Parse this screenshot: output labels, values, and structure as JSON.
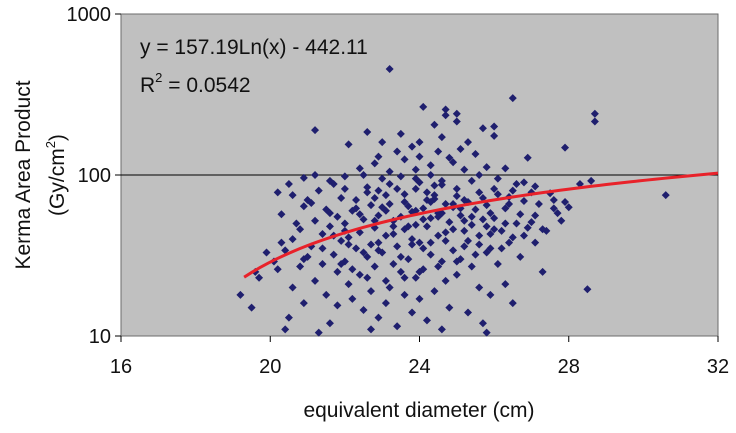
{
  "chart_data": {
    "type": "scatter",
    "xlabel": "equivalent diameter (cm)",
    "ylabel_line1": "Kerma Area Product",
    "ylabel_line2_main": "(Gy/cm",
    "ylabel_line2_sup": "2",
    "ylabel_line2_end": ")",
    "xlim": [
      16,
      32
    ],
    "ylim": [
      10,
      1000
    ],
    "yscale": "log",
    "x_ticks": [
      16,
      20,
      24,
      28,
      32
    ],
    "x_tick_labels": [
      "16",
      "20",
      "24",
      "28",
      "32"
    ],
    "y_ticks": [
      10,
      100,
      1000
    ],
    "y_tick_labels": [
      "10",
      "100",
      "1000"
    ],
    "grid": "horizontal major gridline at 100",
    "plot_background": "#c0c0c0",
    "marker_color": "#1f1f6e",
    "trend_color": "#e8222a",
    "equation": "y = 157.19Ln(x) - 442.11",
    "r2_prefix": "R",
    "r2_sup": "2",
    "r2_suffix": " = 0.0542",
    "trendline": {
      "a": 157.19,
      "b": -442.11,
      "x_range": [
        19.3,
        32
      ]
    },
    "points": [
      [
        23.2,
        455
      ],
      [
        24.7,
        255
      ],
      [
        25.0,
        240
      ],
      [
        24.1,
        265
      ],
      [
        26.5,
        300
      ],
      [
        28.7,
        240
      ],
      [
        28.7,
        215
      ],
      [
        21.2,
        190
      ],
      [
        22.6,
        185
      ],
      [
        23.5,
        180
      ],
      [
        26.0,
        200
      ],
      [
        26.0,
        175
      ],
      [
        25.3,
        160
      ],
      [
        27.9,
        148
      ],
      [
        24.7,
        235
      ],
      [
        25.0,
        215
      ],
      [
        24.4,
        205
      ],
      [
        25.7,
        195
      ],
      [
        23.0,
        160
      ],
      [
        22.1,
        155
      ],
      [
        23.8,
        150
      ],
      [
        24.5,
        140
      ],
      [
        25.1,
        145
      ],
      [
        24.0,
        130
      ],
      [
        23.6,
        125
      ],
      [
        24.9,
        120
      ],
      [
        22.8,
        118
      ],
      [
        22.4,
        110
      ],
      [
        23.2,
        105
      ],
      [
        25.8,
        112
      ],
      [
        26.3,
        110
      ],
      [
        24.3,
        100
      ],
      [
        22.0,
        98
      ],
      [
        23.9,
        95
      ],
      [
        25.4,
        92
      ],
      [
        26.8,
        90
      ],
      [
        21.7,
        88
      ],
      [
        24.6,
        87
      ],
      [
        27.1,
        85
      ],
      [
        22.6,
        84
      ],
      [
        23.4,
        82
      ],
      [
        26.0,
        82
      ],
      [
        21.3,
        80
      ],
      [
        22.9,
        80
      ],
      [
        24.2,
        78
      ],
      [
        25.6,
        78
      ],
      [
        27.5,
        77
      ],
      [
        20.6,
        75
      ],
      [
        23.1,
        75
      ],
      [
        25.0,
        74
      ],
      [
        26.4,
        73
      ],
      [
        21.9,
        72
      ],
      [
        24.4,
        71
      ],
      [
        22.3,
        70
      ],
      [
        25.2,
        70
      ],
      [
        26.8,
        69
      ],
      [
        23.6,
        68
      ],
      [
        21.1,
        67
      ],
      [
        24.9,
        66
      ],
      [
        27.2,
        66
      ],
      [
        22.7,
        65
      ],
      [
        25.8,
        65
      ],
      [
        20.9,
        64
      ],
      [
        23.0,
        63
      ],
      [
        24.1,
        62
      ],
      [
        26.3,
        62
      ],
      [
        21.5,
        61
      ],
      [
        25.5,
        61
      ],
      [
        22.2,
        60
      ],
      [
        23.8,
        59
      ],
      [
        27.7,
        58
      ],
      [
        24.6,
        58
      ],
      [
        20.3,
        57
      ],
      [
        26.7,
        57
      ],
      [
        22.9,
        56
      ],
      [
        25.1,
        56
      ],
      [
        21.8,
        55
      ],
      [
        23.5,
        55
      ],
      [
        24.3,
        54
      ],
      [
        26.0,
        54
      ],
      [
        22.5,
        53
      ],
      [
        25.7,
        53
      ],
      [
        21.2,
        52
      ],
      [
        23.3,
        52
      ],
      [
        24.8,
        51
      ],
      [
        27.0,
        51
      ],
      [
        22.0,
        50
      ],
      [
        26.3,
        50
      ],
      [
        23.9,
        49
      ],
      [
        25.4,
        49
      ],
      [
        21.6,
        48
      ],
      [
        24.2,
        48
      ],
      [
        22.8,
        47
      ],
      [
        26.9,
        47
      ],
      [
        20.8,
        46
      ],
      [
        23.6,
        46
      ],
      [
        25.2,
        45
      ],
      [
        27.4,
        45
      ],
      [
        22.4,
        44
      ],
      [
        24.7,
        44
      ],
      [
        21.4,
        43
      ],
      [
        25.9,
        43
      ],
      [
        23.1,
        42
      ],
      [
        24.5,
        42
      ],
      [
        22.1,
        41
      ],
      [
        26.5,
        41
      ],
      [
        20.6,
        40
      ],
      [
        23.8,
        40
      ],
      [
        25.3,
        39
      ],
      [
        21.9,
        39
      ],
      [
        24.0,
        38
      ],
      [
        27.1,
        38
      ],
      [
        22.7,
        37
      ],
      [
        25.6,
        37
      ],
      [
        21.1,
        36
      ],
      [
        23.4,
        36
      ],
      [
        26.2,
        35
      ],
      [
        22.3,
        35
      ],
      [
        24.9,
        34
      ],
      [
        20.4,
        34
      ],
      [
        23.0,
        33
      ],
      [
        25.8,
        33
      ],
      [
        21.7,
        32
      ],
      [
        24.3,
        32
      ],
      [
        22.6,
        31
      ],
      [
        26.7,
        31
      ],
      [
        23.7,
        30
      ],
      [
        20.9,
        30
      ],
      [
        25.1,
        30
      ],
      [
        22.0,
        29
      ],
      [
        24.6,
        29
      ],
      [
        21.4,
        28
      ],
      [
        23.3,
        28
      ],
      [
        26.1,
        28
      ],
      [
        22.8,
        27
      ],
      [
        25.4,
        27
      ],
      [
        20.2,
        26
      ],
      [
        24.1,
        26
      ],
      [
        21.8,
        25
      ],
      [
        23.5,
        25
      ],
      [
        27.3,
        25
      ],
      [
        22.4,
        24
      ],
      [
        25.0,
        24
      ],
      [
        19.7,
        23
      ],
      [
        23.9,
        23
      ],
      [
        21.2,
        22
      ],
      [
        24.7,
        22
      ],
      [
        22.1,
        21
      ],
      [
        26.3,
        21
      ],
      [
        20.6,
        20
      ],
      [
        23.2,
        20
      ],
      [
        25.6,
        20
      ],
      [
        28.5,
        19.5
      ],
      [
        22.7,
        19
      ],
      [
        24.4,
        19
      ],
      [
        21.5,
        18
      ],
      [
        19.2,
        18
      ],
      [
        23.6,
        18
      ],
      [
        25.9,
        18
      ],
      [
        22.2,
        17
      ],
      [
        24.0,
        17
      ],
      [
        20.9,
        16
      ],
      [
        23.1,
        16
      ],
      [
        26.5,
        16
      ],
      [
        21.8,
        15.5
      ],
      [
        24.8,
        15
      ],
      [
        19.5,
        15
      ],
      [
        22.5,
        14.5
      ],
      [
        23.8,
        14
      ],
      [
        25.3,
        14
      ],
      [
        20.5,
        13
      ],
      [
        22.9,
        13
      ],
      [
        24.2,
        12.5
      ],
      [
        21.6,
        12
      ],
      [
        25.7,
        12
      ],
      [
        23.4,
        11.5
      ],
      [
        20.4,
        11
      ],
      [
        22.7,
        11
      ],
      [
        24.6,
        11
      ],
      [
        21.3,
        10.5
      ],
      [
        25.8,
        10.5
      ],
      [
        19.6,
        25
      ],
      [
        20.1,
        29
      ],
      [
        19.9,
        33
      ],
      [
        20.8,
        27
      ],
      [
        21.0,
        31
      ],
      [
        20.3,
        38
      ],
      [
        21.4,
        35
      ],
      [
        22.0,
        45
      ],
      [
        21.6,
        58
      ],
      [
        21.0,
        70
      ],
      [
        20.7,
        50
      ],
      [
        22.3,
        62
      ],
      [
        22.8,
        72
      ],
      [
        23.2,
        88
      ],
      [
        23.5,
        98
      ],
      [
        23.9,
        108
      ],
      [
        24.3,
        115
      ],
      [
        24.8,
        128
      ],
      [
        25.2,
        108
      ],
      [
        25.6,
        100
      ],
      [
        26.1,
        95
      ],
      [
        26.6,
        88
      ],
      [
        27.0,
        78
      ],
      [
        27.6,
        70
      ],
      [
        28.0,
        63
      ],
      [
        27.8,
        52
      ],
      [
        27.3,
        46
      ],
      [
        26.8,
        42
      ],
      [
        26.4,
        38
      ],
      [
        25.9,
        35
      ],
      [
        25.5,
        32
      ],
      [
        25.0,
        29
      ],
      [
        24.5,
        27
      ],
      [
        24.0,
        25
      ],
      [
        23.6,
        23
      ],
      [
        23.1,
        22
      ],
      [
        22.6,
        23
      ],
      [
        22.2,
        26
      ],
      [
        21.9,
        28
      ],
      [
        22.5,
        33
      ],
      [
        22.9,
        38
      ],
      [
        23.3,
        43
      ],
      [
        23.7,
        48
      ],
      [
        24.1,
        53
      ],
      [
        24.5,
        58
      ],
      [
        24.9,
        63
      ],
      [
        25.3,
        68
      ],
      [
        25.7,
        72
      ],
      [
        26.1,
        76
      ],
      [
        26.5,
        80
      ],
      [
        23.0,
        95
      ],
      [
        22.5,
        100
      ],
      [
        24.0,
        90
      ],
      [
        24.4,
        86
      ],
      [
        25.0,
        82
      ],
      [
        23.6,
        76
      ],
      [
        24.2,
        70
      ],
      [
        24.7,
        66
      ],
      [
        23.9,
        60
      ],
      [
        24.5,
        55
      ],
      [
        25.2,
        52
      ],
      [
        25.8,
        48
      ],
      [
        26.2,
        45
      ],
      [
        23.3,
        48
      ],
      [
        22.8,
        52
      ],
      [
        22.4,
        57
      ],
      [
        23.1,
        60
      ],
      [
        23.7,
        64
      ],
      [
        24.3,
        68
      ],
      [
        21.7,
        42
      ],
      [
        22.1,
        37
      ],
      [
        22.9,
        34
      ],
      [
        23.5,
        31
      ],
      [
        24.1,
        35
      ],
      [
        24.7,
        39
      ],
      [
        25.2,
        36
      ],
      [
        25.6,
        42
      ],
      [
        26.0,
        46
      ],
      [
        26.6,
        50
      ],
      [
        27.1,
        56
      ],
      [
        27.6,
        62
      ],
      [
        27.9,
        68
      ],
      [
        28.3,
        88
      ],
      [
        28.6,
        92
      ],
      [
        30.6,
        75
      ],
      [
        24.0,
        160
      ],
      [
        24.6,
        172
      ],
      [
        23.4,
        140
      ],
      [
        25.5,
        135
      ],
      [
        22.9,
        130
      ],
      [
        26.9,
        128
      ],
      [
        24.3,
        38
      ],
      [
        23.8,
        37
      ],
      [
        24.9,
        46
      ],
      [
        25.4,
        55
      ],
      [
        23.2,
        66
      ],
      [
        22.6,
        78
      ],
      [
        24.6,
        92
      ],
      [
        23.9,
        82
      ],
      [
        24.4,
        75
      ],
      [
        25.1,
        62
      ],
      [
        25.9,
        58
      ],
      [
        26.4,
        66
      ],
      [
        22.0,
        82
      ],
      [
        21.6,
        92
      ],
      [
        21.2,
        100
      ],
      [
        20.9,
        96
      ],
      [
        20.5,
        88
      ],
      [
        20.2,
        78
      ]
    ]
  }
}
